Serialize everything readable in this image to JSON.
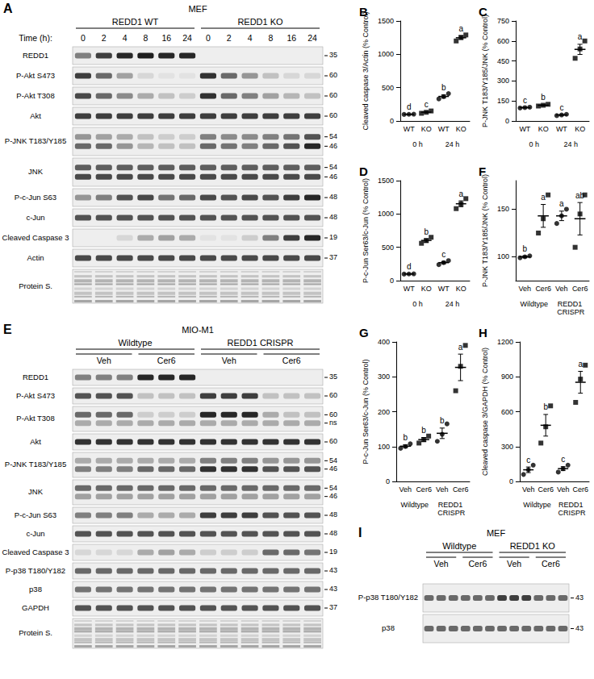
{
  "chart_data": [
    {
      "type": "scatter",
      "title": "B",
      "ylabel": "Cleaved caspase 3/Actin (% Control)",
      "categories": [
        "WT",
        "KO",
        "WT",
        "KO"
      ],
      "groups": [
        "0 h",
        "24 h"
      ],
      "ylim": [
        0,
        1500
      ],
      "yticks": [
        0,
        500,
        1000,
        1500
      ],
      "grid": false,
      "series": [
        {
          "marker": "circle",
          "color": "#000000",
          "values": [
            [
              98,
              100,
              102
            ],
            null,
            [
              330,
              365,
              410
            ],
            null
          ]
        },
        {
          "marker": "square",
          "color": "#000000",
          "values": [
            null,
            [
              115,
              130,
              150
            ],
            null,
            [
              1200,
              1255,
              1290
            ]
          ]
        }
      ],
      "means": [
        100,
        132,
        368,
        1248
      ],
      "errors": [
        1,
        10,
        23,
        26
      ],
      "letters": [
        "d",
        "c",
        "b",
        "a"
      ]
    },
    {
      "type": "scatter",
      "title": "C",
      "ylabel": "P-JNK T183/Y185/JNK (% Control)",
      "categories": [
        "WT",
        "KO",
        "WT",
        "KO"
      ],
      "groups": [
        "0 h",
        "24 h"
      ],
      "ylim": [
        0,
        750
      ],
      "yticks": [
        0,
        150,
        300,
        450,
        600,
        750
      ],
      "grid": false,
      "series": [
        {
          "marker": "circle",
          "color": "#000000",
          "values": [
            [
              97,
              100,
              103
            ],
            null,
            [
              40,
              45,
              50
            ],
            null
          ]
        },
        {
          "marker": "square",
          "color": "#000000",
          "values": [
            null,
            [
              112,
              118,
              125
            ],
            null,
            [
              470,
              540,
              600
            ]
          ]
        }
      ],
      "means": [
        100,
        118,
        45,
        537
      ],
      "errors": [
        2,
        4,
        3,
        38
      ],
      "letters": [
        "c",
        "b",
        "c",
        "a"
      ]
    },
    {
      "type": "scatter",
      "title": "D",
      "ylabel": "P-c-Jun Ser63/c-Jun (% Control)",
      "categories": [
        "WT",
        "KO",
        "WT",
        "KO"
      ],
      "groups": [
        "0 h",
        "24 h"
      ],
      "ylim": [
        0,
        1500
      ],
      "yticks": [
        0,
        500,
        1000,
        1500
      ],
      "grid": false,
      "series": [
        {
          "marker": "circle",
          "color": "#000000",
          "values": [
            [
              98,
              100,
              102
            ],
            null,
            [
              240,
              270,
              300
            ],
            null
          ]
        },
        {
          "marker": "square",
          "color": "#000000",
          "values": [
            null,
            [
              560,
              600,
              650
            ],
            null,
            [
              1080,
              1150,
              1230
            ]
          ]
        }
      ],
      "means": [
        100,
        603,
        270,
        1153
      ],
      "errors": [
        1,
        26,
        17,
        44
      ],
      "letters": [
        "d",
        "b",
        "c",
        "a"
      ]
    },
    {
      "type": "scatter",
      "title": "F",
      "ylabel": "P-JNK T183/Y185/JNK (% Control)",
      "categories": [
        "Veh",
        "Cer6",
        "Veh",
        "Cer6"
      ],
      "groups": [
        "Wildtype",
        "REDD1 CRISPR"
      ],
      "ylim": [
        75,
        180
      ],
      "yticks": [
        100,
        150
      ],
      "grid": false,
      "series": [
        {
          "marker": "circle",
          "color": "#000000",
          "values": [
            [
              99,
              100,
              101
            ],
            null,
            [
              135,
              143,
              150
            ],
            null
          ]
        },
        {
          "marker": "square",
          "color": "#000000",
          "values": [
            null,
            [
              125,
              140,
              165
            ],
            null,
            [
              110,
              145,
              165
            ]
          ]
        }
      ],
      "means": [
        100,
        143,
        143,
        140
      ],
      "errors": [
        1,
        12,
        5,
        17
      ],
      "letters": [
        "b",
        "a",
        "a",
        "ab"
      ]
    },
    {
      "type": "scatter",
      "title": "G",
      "ylabel": "P-c-Jun Ser63/c-Jun (% Control)",
      "categories": [
        "Veh",
        "Cer6",
        "Veh",
        "Cer6"
      ],
      "groups": [
        "Wildtype",
        "REDD1 CRISPR"
      ],
      "ylim": [
        0,
        400
      ],
      "yticks": [
        0,
        100,
        200,
        300,
        400
      ],
      "grid": false,
      "series": [
        {
          "marker": "circle",
          "color": "#000000",
          "values": [
            [
              95,
              100,
              108
            ],
            null,
            [
              115,
              135,
              165
            ],
            null
          ]
        },
        {
          "marker": "square",
          "color": "#000000",
          "values": [
            null,
            [
              110,
              120,
              130
            ],
            null,
            [
              260,
              330,
              390
            ]
          ]
        }
      ],
      "means": [
        101,
        120,
        138,
        327
      ],
      "errors": [
        4,
        6,
        15,
        38
      ],
      "letters": [
        "b",
        "b",
        "b",
        "a"
      ]
    },
    {
      "type": "scatter",
      "title": "H",
      "ylabel": "Cleaved caspase 3/GAPDH (% Control)",
      "categories": [
        "Veh",
        "Cer6",
        "Veh",
        "Cer6"
      ],
      "groups": [
        "Wildtype",
        "REDD1 CRISPR"
      ],
      "ylim": [
        0,
        1200
      ],
      "yticks": [
        0,
        300,
        600,
        900,
        1200
      ],
      "grid": false,
      "series": [
        {
          "marker": "circle",
          "color": "#000000",
          "values": [
            [
              60,
              100,
              140
            ],
            null,
            [
              80,
              110,
              140
            ],
            null
          ]
        },
        {
          "marker": "square",
          "color": "#000000",
          "values": [
            null,
            [
              330,
              470,
              650
            ],
            null,
            [
              680,
              880,
              1000
            ]
          ]
        }
      ],
      "means": [
        100,
        483,
        110,
        853
      ],
      "errors": [
        24,
        93,
        17,
        94
      ],
      "letters": [
        "c",
        "b",
        "c",
        "a"
      ]
    }
  ],
  "blots": [
    {
      "panel": "A",
      "title": "MEF",
      "groups": [
        "REDD1 WT",
        "REDD1 KO"
      ],
      "lane_title": "Time (h):",
      "lanes": [
        "0",
        "2",
        "4",
        "8",
        "16",
        "24",
        "0",
        "2",
        "4",
        "8",
        "16",
        "24"
      ],
      "rows": [
        {
          "label": "REDD1",
          "mw": [
            "35"
          ],
          "bands": [
            [
              0.5,
              0.8,
              0.9,
              0.95,
              0.9,
              0.9,
              0,
              0,
              0,
              0,
              0,
              0
            ]
          ]
        },
        {
          "label": "P-Akt S473",
          "mw": [
            "60"
          ],
          "bands": [
            [
              0.8,
              0.6,
              0.35,
              0.1,
              0.05,
              0.05,
              0.85,
              0.6,
              0.4,
              0.2,
              0.1,
              0.1
            ]
          ]
        },
        {
          "label": "P-Akt T308",
          "mw": [
            "60"
          ],
          "bands": [
            [
              0.75,
              0.6,
              0.45,
              0.3,
              0.2,
              0.15,
              0.85,
              0.6,
              0.5,
              0.35,
              0.25,
              0.2
            ]
          ]
        },
        {
          "label": "Akt",
          "mw": [
            "60"
          ],
          "bands": [
            [
              0.8,
              0.8,
              0.8,
              0.8,
              0.8,
              0.8,
              0.8,
              0.8,
              0.8,
              0.8,
              0.8,
              0.8
            ]
          ]
        },
        {
          "label": "P-JNK T183/Y185",
          "mw": [
            "54",
            "46"
          ],
          "bands": [
            [
              0.4,
              0.35,
              0.3,
              0.2,
              0.15,
              0.15,
              0.5,
              0.45,
              0.45,
              0.5,
              0.55,
              0.7
            ],
            [
              0.6,
              0.6,
              0.4,
              0.25,
              0.2,
              0.2,
              0.6,
              0.55,
              0.5,
              0.6,
              0.7,
              0.9
            ]
          ]
        },
        {
          "label": "JNK",
          "mw": [
            "54",
            "46"
          ],
          "bands": [
            [
              0.65,
              0.65,
              0.65,
              0.65,
              0.65,
              0.65,
              0.65,
              0.65,
              0.65,
              0.65,
              0.65,
              0.65
            ],
            [
              0.75,
              0.75,
              0.75,
              0.75,
              0.75,
              0.75,
              0.75,
              0.75,
              0.75,
              0.75,
              0.75,
              0.75
            ]
          ]
        },
        {
          "label": "P-c-Jun S63",
          "mw": [
            "48"
          ],
          "bands": [
            [
              0.4,
              0.5,
              0.7,
              0.75,
              0.55,
              0.6,
              0.75,
              0.7,
              0.75,
              0.7,
              0.8,
              0.9
            ]
          ]
        },
        {
          "label": "c-Jun",
          "mw": [
            "48"
          ],
          "bands": [
            [
              0.7,
              0.7,
              0.7,
              0.7,
              0.7,
              0.7,
              0.7,
              0.7,
              0.7,
              0.7,
              0.7,
              0.7
            ]
          ]
        },
        {
          "label": "Cleaved Caspase 3",
          "mw": [
            "19"
          ],
          "bands": [
            [
              0,
              0,
              0.1,
              0.3,
              0.35,
              0.3,
              0.05,
              0.05,
              0.15,
              0.5,
              0.8,
              0.9
            ]
          ]
        },
        {
          "label": "Actin",
          "mw": [
            "37"
          ],
          "bands": [
            [
              0.75,
              0.75,
              0.75,
              0.75,
              0.75,
              0.75,
              0.75,
              0.75,
              0.75,
              0.75,
              0.75,
              0.75
            ]
          ]
        },
        {
          "label": "Protein S."
        }
      ]
    },
    {
      "panel": "E",
      "title": "MIO-M1",
      "groups": [
        "Wildtype",
        "REDD1 CRISPR"
      ],
      "subgroups": [
        "Veh",
        "Cer6",
        "Veh",
        "Cer6"
      ],
      "rows": [
        {
          "label": "REDD1",
          "mw": [
            "35"
          ],
          "bands": [
            [
              0.5,
              0.5,
              0.5,
              0.9,
              0.9,
              0.9,
              0,
              0,
              0,
              0,
              0,
              0
            ]
          ]
        },
        {
          "label": "P-Akt S473",
          "mw": [
            "60"
          ],
          "bands": [
            [
              0.7,
              0.7,
              0.7,
              0.2,
              0.2,
              0.2,
              0.8,
              0.8,
              0.8,
              0.2,
              0.2,
              0.2
            ]
          ]
        },
        {
          "label": "P-Akt T308",
          "mw": [
            "60",
            "ns"
          ],
          "bands": [
            [
              0.6,
              0.6,
              0.6,
              0.15,
              0.15,
              0.15,
              0.9,
              0.9,
              0.9,
              0.3,
              0.2,
              0.2
            ],
            [
              0.3,
              0.3,
              0.3,
              0.3,
              0.3,
              0.3,
              0.3,
              0.3,
              0.3,
              0.3,
              0.3,
              0.3
            ]
          ]
        },
        {
          "label": "Akt",
          "mw": [
            "60"
          ],
          "bands": [
            [
              0.85,
              0.85,
              0.85,
              0.85,
              0.85,
              0.85,
              0.85,
              0.85,
              0.85,
              0.85,
              0.85,
              0.85
            ]
          ]
        },
        {
          "label": "P-JNK T183/Y185",
          "mw": [
            "54",
            "46"
          ],
          "bands": [
            [
              0.3,
              0.3,
              0.3,
              0.3,
              0.3,
              0.3,
              0.5,
              0.5,
              0.5,
              0.4,
              0.4,
              0.4
            ],
            [
              0.5,
              0.5,
              0.5,
              0.6,
              0.6,
              0.6,
              0.85,
              0.85,
              0.85,
              0.7,
              0.7,
              0.7
            ]
          ]
        },
        {
          "label": "JNK",
          "mw": [
            "54",
            "46"
          ],
          "bands": [
            [
              0.6,
              0.6,
              0.6,
              0.6,
              0.6,
              0.6,
              0.6,
              0.6,
              0.6,
              0.6,
              0.6,
              0.6
            ],
            [
              0.35,
              0.35,
              0.35,
              0.35,
              0.35,
              0.35,
              0.35,
              0.35,
              0.35,
              0.35,
              0.35,
              0.35
            ]
          ]
        },
        {
          "label": "P-c-Jun S63",
          "mw": [
            "48"
          ],
          "bands": [
            [
              0.5,
              0.5,
              0.5,
              0.3,
              0.3,
              0.3,
              0.8,
              0.8,
              0.8,
              0.7,
              0.7,
              0.7
            ]
          ]
        },
        {
          "label": "c-Jun",
          "mw": [
            "48"
          ],
          "bands": [
            [
              0.7,
              0.7,
              0.7,
              0.7,
              0.7,
              0.7,
              0.7,
              0.7,
              0.7,
              0.7,
              0.7,
              0.7
            ]
          ]
        },
        {
          "label": "Cleaved Caspase 3",
          "mw": [
            "19"
          ],
          "bands": [
            [
              0.1,
              0.1,
              0.1,
              0.3,
              0.35,
              0.3,
              0.15,
              0.15,
              0.15,
              0.6,
              0.6,
              0.55
            ]
          ]
        },
        {
          "label": "P-p38 T180/Y182",
          "mw": [
            "43"
          ],
          "bands": [
            [
              0.6,
              0.6,
              0.6,
              0.6,
              0.6,
              0.6,
              0.6,
              0.6,
              0.6,
              0.6,
              0.6,
              0.6
            ]
          ]
        },
        {
          "label": "p38",
          "mw": [
            "43"
          ],
          "bands": [
            [
              0.55,
              0.55,
              0.55,
              0.55,
              0.55,
              0.55,
              0.55,
              0.55,
              0.55,
              0.55,
              0.55,
              0.55
            ]
          ]
        },
        {
          "label": "GAPDH",
          "mw": [
            "37"
          ],
          "bands": [
            [
              0.7,
              0.7,
              0.7,
              0.7,
              0.7,
              0.7,
              0.7,
              0.7,
              0.7,
              0.7,
              0.7,
              0.7
            ]
          ]
        },
        {
          "label": "Protein S."
        }
      ]
    },
    {
      "panel": "I",
      "title": "MEF",
      "groups": [
        "Wildtype",
        "REDD1 KO"
      ],
      "subgroups": [
        "Veh",
        "Cer6",
        "Veh",
        "Cer6"
      ],
      "rows": [
        {
          "label": "P-p38 T180/Y182",
          "mw": [
            "43"
          ],
          "bands": [
            [
              0.6,
              0.6,
              0.6,
              0.6,
              0.6,
              0.6,
              0.8,
              0.8,
              0.8,
              0.6,
              0.6,
              0.6
            ]
          ]
        },
        {
          "label": "p38",
          "mw": [
            "43"
          ],
          "bands": [
            [
              0.6,
              0.6,
              0.6,
              0.6,
              0.6,
              0.6,
              0.6,
              0.6,
              0.6,
              0.6,
              0.6,
              0.6
            ]
          ]
        }
      ]
    }
  ]
}
